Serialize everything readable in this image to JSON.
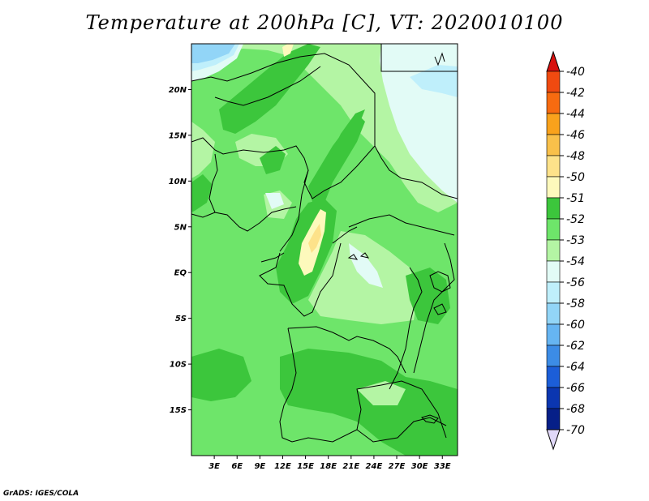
{
  "title": "Temperature at 200hPa [C], VT: 2020010100",
  "credit": "GrADS: IGES/COLA",
  "map": {
    "lon_range": [
      0,
      35
    ],
    "lat_range": [
      -20,
      25
    ],
    "lat_ticks": [
      {
        "value": 20,
        "label": "20N"
      },
      {
        "value": 15,
        "label": "15N"
      },
      {
        "value": 10,
        "label": "10N"
      },
      {
        "value": 5,
        "label": "5N"
      },
      {
        "value": 0,
        "label": "EQ"
      },
      {
        "value": -5,
        "label": "5S"
      },
      {
        "value": -10,
        "label": "10S"
      },
      {
        "value": -15,
        "label": "15S"
      }
    ],
    "lon_ticks": [
      {
        "value": 3,
        "label": "3E"
      },
      {
        "value": 6,
        "label": "6E"
      },
      {
        "value": 9,
        "label": "9E"
      },
      {
        "value": 12,
        "label": "12E"
      },
      {
        "value": 15,
        "label": "15E"
      },
      {
        "value": 18,
        "label": "18E"
      },
      {
        "value": 21,
        "label": "21E"
      },
      {
        "value": 24,
        "label": "24E"
      },
      {
        "value": 27,
        "label": "27E"
      },
      {
        "value": 30,
        "label": "30E"
      },
      {
        "value": 33,
        "label": "33E"
      }
    ]
  },
  "colorbar": {
    "levels": [
      {
        "label": "-40",
        "color": "#e8201a"
      },
      {
        "label": "-42",
        "color": "#f04a10"
      },
      {
        "label": "-44",
        "color": "#f76b10"
      },
      {
        "label": "-46",
        "color": "#f9a21c"
      },
      {
        "label": "-48",
        "color": "#f9c04a"
      },
      {
        "label": "-50",
        "color": "#fde28a"
      },
      {
        "label": "-51",
        "color": "#fdf9bc"
      },
      {
        "label": "-52",
        "color": "#3cc63c"
      },
      {
        "label": "-53",
        "color": "#6ee56a"
      },
      {
        "label": "-54",
        "color": "#b4f5a4"
      },
      {
        "label": "-56",
        "color": "#e2fbf6"
      },
      {
        "label": "-58",
        "color": "#bfeffb"
      },
      {
        "label": "-60",
        "color": "#92d5f7"
      },
      {
        "label": "-62",
        "color": "#66b5f2"
      },
      {
        "label": "-64",
        "color": "#3c8ce6"
      },
      {
        "label": "-66",
        "color": "#1c5ed8"
      },
      {
        "label": "-68",
        "color": "#0b36b0"
      },
      {
        "label": "-70",
        "color": "#061f88"
      }
    ],
    "top_color": "#d8100e",
    "bottom_color": "#e0d8f8"
  },
  "field_colors": {
    "base": "#6ee56a",
    "dark": "#3cc63c",
    "light": "#b4f5a4",
    "pale": "#e2fbf6",
    "sky": "#bfeffb",
    "blue": "#92d5f7",
    "yellow": "#fdf9bc",
    "tan": "#fde28a"
  }
}
